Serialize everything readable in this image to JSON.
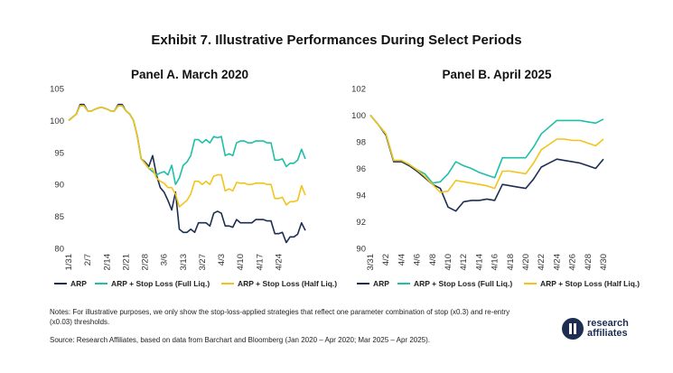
{
  "title": "Exhibit 7. Illustrative Performances During Select Periods",
  "colors": {
    "arp": "#1e2e52",
    "full": "#1fbfa8",
    "half": "#f2c41b"
  },
  "legend": [
    {
      "name": "ARP",
      "color": "#1e2e52"
    },
    {
      "name": "ARP + Stop Loss (Full Liq.)",
      "color": "#1fbfa8"
    },
    {
      "name": "ARP + Stop Loss (Half Liq.)",
      "color": "#f2c41b"
    }
  ],
  "notes": "Notes: For illustrative purposes, we only show the stop-loss-applied strategies that reflect one parameter combination of stop (x0.3) and re-entry (x0.03) thresholds.",
  "source": "Source: Research Affiliates, based on data from Barchart and Bloomberg (Jan 2020 – Apr 2020; Mar 2025 – Apr 2025).",
  "logo": {
    "line1": "research",
    "line2": "affiliates"
  },
  "chart_data": [
    {
      "type": "line",
      "title": "Panel A. March 2020",
      "ylim": [
        80,
        105
      ],
      "yticks": [
        80,
        85,
        90,
        95,
        100,
        105
      ],
      "xticks": [
        {
          "label": "1/31",
          "i": 0
        },
        {
          "label": "2/7",
          "i": 5
        },
        {
          "label": "2/14",
          "i": 10
        },
        {
          "label": "2/21",
          "i": 15
        },
        {
          "label": "2/28",
          "i": 20
        },
        {
          "label": "3/6",
          "i": 25
        },
        {
          "label": "3/13",
          "i": 30
        },
        {
          "label": "3/27",
          "i": 35
        },
        {
          "label": "4/3",
          "i": 40
        },
        {
          "label": "4/10",
          "i": 45
        },
        {
          "label": "4/17",
          "i": 50
        },
        {
          "label": "4/24",
          "i": 55
        }
      ],
      "series": [
        {
          "name": "ARP",
          "color": "#1e2e52",
          "values": [
            100,
            100.5,
            101,
            102.5,
            102.5,
            101.5,
            101.5,
            101.8,
            102,
            102,
            101.8,
            101.5,
            101.5,
            102.5,
            102.5,
            101.5,
            101,
            100,
            97.5,
            94,
            93.5,
            92.8,
            94.5,
            91.5,
            89.5,
            88.8,
            87.5,
            86,
            88.8,
            83,
            82.5,
            82.5,
            83,
            82.5,
            84,
            84,
            84,
            83.5,
            85.5,
            85.8,
            85.5,
            83.5,
            83.5,
            83.3,
            84.5,
            84,
            84,
            84,
            84,
            84.5,
            84.5,
            84.5,
            84.3,
            84.3,
            82.3,
            82.3,
            82.5,
            80.9,
            81.8,
            81.8,
            82.2,
            84,
            82.8
          ]
        },
        {
          "name": "ARP + Stop Loss (Full Liq.)",
          "color": "#1fbfa8",
          "values": [
            100,
            100.5,
            101,
            102.3,
            102.3,
            101.5,
            101.5,
            101.8,
            102,
            102,
            101.8,
            101.5,
            101.5,
            102.3,
            102.3,
            101.5,
            101,
            100,
            97.5,
            94,
            93.3,
            92.5,
            92,
            91.5,
            91.8,
            92,
            91.5,
            93,
            90,
            91,
            93,
            93.5,
            94.5,
            97,
            97,
            96.5,
            97,
            96.5,
            97.5,
            97.3,
            97.5,
            94.5,
            94.8,
            94.5,
            96.5,
            96.8,
            96.8,
            96.5,
            96.5,
            96.8,
            96.8,
            96.8,
            96.5,
            96.5,
            93.8,
            93.8,
            94,
            92.8,
            93.3,
            93.3,
            93.8,
            95.5,
            94
          ]
        },
        {
          "name": "ARP + Stop Loss (Half Liq.)",
          "color": "#f2c41b",
          "values": [
            100,
            100.5,
            101,
            102.3,
            102.3,
            101.5,
            101.5,
            101.8,
            102,
            102,
            101.8,
            101.5,
            101.5,
            102.3,
            102.3,
            101.5,
            101,
            100,
            97.5,
            94,
            93.3,
            92.5,
            92.5,
            91,
            90.5,
            90.2,
            89.5,
            89.5,
            88.5,
            86.5,
            87,
            87.5,
            88.5,
            90.5,
            90.5,
            90,
            90.5,
            90,
            91.3,
            91.5,
            91.5,
            89,
            89.3,
            89,
            90.3,
            90.2,
            90.2,
            90,
            90,
            90.2,
            90.2,
            90.2,
            90,
            90,
            87.8,
            87.8,
            88,
            86.8,
            87.3,
            87.3,
            87.5,
            89.8,
            88.3
          ]
        }
      ]
    },
    {
      "type": "line",
      "title": "Panel B. April 2025",
      "ylim": [
        90,
        102
      ],
      "yticks": [
        90,
        92,
        94,
        96,
        98,
        100,
        102
      ],
      "xticks": [
        {
          "label": "3/31",
          "i": 0
        },
        {
          "label": "4/2",
          "i": 2
        },
        {
          "label": "4/4",
          "i": 4
        },
        {
          "label": "4/6",
          "i": 6
        },
        {
          "label": "4/8",
          "i": 8
        },
        {
          "label": "4/10",
          "i": 10
        },
        {
          "label": "4/12",
          "i": 12
        },
        {
          "label": "4/14",
          "i": 14
        },
        {
          "label": "4/16",
          "i": 16
        },
        {
          "label": "4/18",
          "i": 18
        },
        {
          "label": "4/20",
          "i": 20
        },
        {
          "label": "4/22",
          "i": 22
        },
        {
          "label": "4/24",
          "i": 24
        },
        {
          "label": "4/26",
          "i": 26
        },
        {
          "label": "4/28",
          "i": 28
        },
        {
          "label": "4/30",
          "i": 30
        }
      ],
      "series": [
        {
          "name": "ARP",
          "color": "#1e2e52",
          "values": [
            100,
            99.3,
            98.5,
            96.5,
            96.5,
            96.2,
            95.8,
            95.3,
            94.8,
            94.5,
            93.1,
            92.8,
            93.5,
            93.6,
            93.6,
            93.7,
            93.6,
            94.8,
            94.7,
            94.6,
            94.5,
            95.2,
            96.1,
            96.4,
            96.7,
            96.6,
            96.5,
            96.4,
            96.2,
            96,
            96.7
          ]
        },
        {
          "name": "ARP + Stop Loss (Full Liq.)",
          "color": "#1fbfa8",
          "values": [
            100,
            99.3,
            98.6,
            96.6,
            96.6,
            96.3,
            95.9,
            95.6,
            94.9,
            95,
            95.6,
            96.5,
            96.2,
            96,
            95.7,
            95.5,
            95.3,
            96.8,
            96.8,
            96.8,
            96.8,
            97.6,
            98.6,
            99.1,
            99.6,
            99.6,
            99.6,
            99.6,
            99.5,
            99.4,
            99.7
          ]
        },
        {
          "name": "ARP + Stop Loss (Half Liq.)",
          "color": "#f2c41b",
          "values": [
            100,
            99.3,
            98.6,
            96.6,
            96.6,
            96.3,
            95.9,
            95.4,
            94.8,
            94.2,
            94.3,
            95.1,
            95,
            94.9,
            94.8,
            94.7,
            94.5,
            95.8,
            95.8,
            95.7,
            95.6,
            96.4,
            97.4,
            97.8,
            98.2,
            98.2,
            98.1,
            98.1,
            97.9,
            97.7,
            98.2
          ]
        }
      ]
    }
  ]
}
